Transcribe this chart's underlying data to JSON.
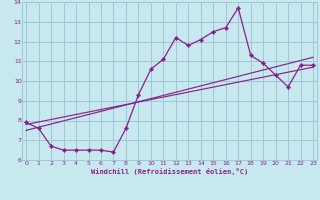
{
  "bg_color": "#c8e8f0",
  "grid_color": "#a0c8d8",
  "line_color": "#882288",
  "xlim": [
    -0.3,
    23.3
  ],
  "ylim": [
    6,
    14
  ],
  "xticks": [
    0,
    1,
    2,
    3,
    4,
    5,
    6,
    7,
    8,
    9,
    10,
    11,
    12,
    13,
    14,
    15,
    16,
    17,
    18,
    19,
    20,
    21,
    22,
    23
  ],
  "yticks": [
    6,
    7,
    8,
    9,
    10,
    11,
    12,
    13,
    14
  ],
  "xlabel": "Windchill (Refroidissement éolien,°C)",
  "line1_x": [
    0,
    1,
    2,
    3,
    4,
    5,
    6,
    7,
    8,
    9,
    10,
    11,
    12,
    13,
    14,
    15,
    16,
    17,
    18,
    19,
    20,
    21,
    22,
    23
  ],
  "line1_y": [
    7.9,
    7.6,
    6.7,
    6.5,
    6.5,
    6.5,
    6.5,
    6.4,
    7.6,
    9.3,
    10.6,
    11.1,
    12.2,
    11.8,
    12.1,
    12.5,
    12.7,
    13.7,
    11.3,
    10.9,
    10.3,
    9.7,
    10.8,
    10.8
  ],
  "line2_x": [
    0,
    23
  ],
  "line2_y": [
    7.8,
    10.7
  ],
  "line3_x": [
    0,
    23
  ],
  "line3_y": [
    7.5,
    11.2
  ]
}
